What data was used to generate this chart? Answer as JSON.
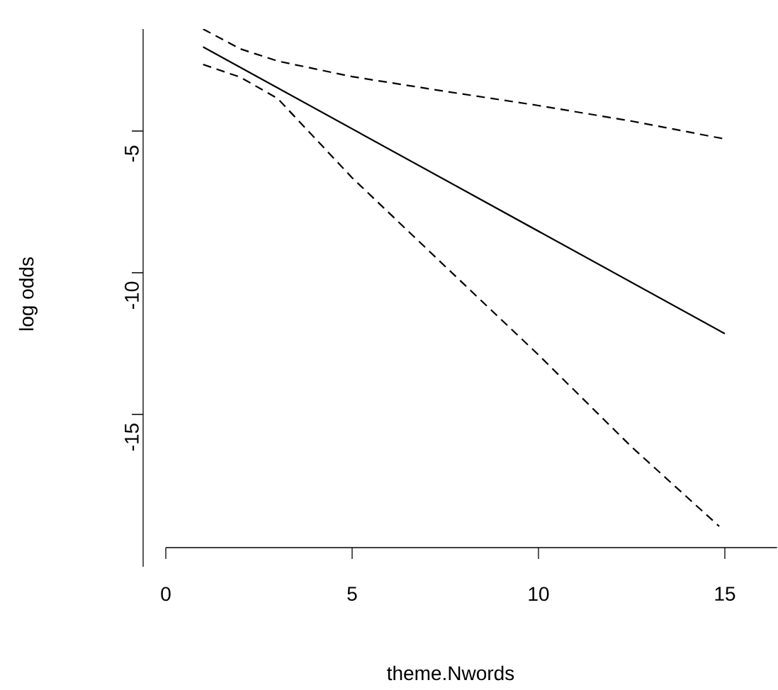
{
  "chart_data": {
    "type": "line",
    "xlabel": "theme.Nwords",
    "ylabel": "log odds",
    "xlim": [
      0,
      16.4
    ],
    "ylim": [
      -19.7,
      -1.4
    ],
    "xticks": [
      0,
      5,
      10,
      15
    ],
    "yticks": [
      -15,
      -10,
      -5
    ],
    "series": [
      {
        "color": "#000000",
        "line_style": "solid",
        "x": [
          1,
          15
        ],
        "values": [
          -2.03,
          -12.15
        ]
      },
      {
        "color": "#000000",
        "line_style": "dashed",
        "x": [
          1,
          2,
          3,
          5,
          7.5,
          10,
          12.5,
          15
        ],
        "values": [
          -1.4,
          -2.1,
          -2.53,
          -3.08,
          -3.6,
          -4.1,
          -4.65,
          -5.28
        ]
      },
      {
        "color": "#000000",
        "line_style": "dashed",
        "x": [
          1,
          2,
          3,
          5,
          7.5,
          10,
          12.5,
          14.85
        ],
        "values": [
          -2.65,
          -3.1,
          -3.85,
          -6.65,
          -9.78,
          -12.9,
          -16.15,
          -18.95
        ]
      }
    ]
  }
}
